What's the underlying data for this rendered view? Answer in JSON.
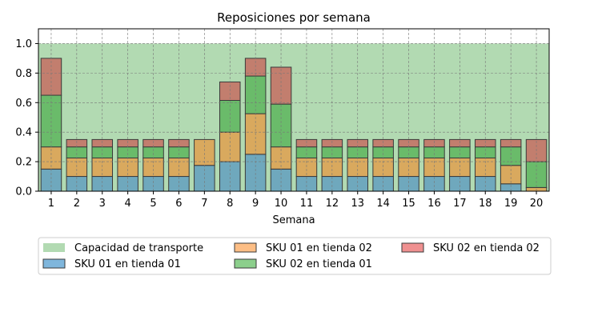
{
  "chart_data": {
    "type": "bar",
    "title": "Reposiciones por semana",
    "xlabel": "Semana",
    "ylabel": "",
    "ylim": [
      0,
      1.1
    ],
    "yticks": [
      "0.0",
      "0.2",
      "0.4",
      "0.6",
      "0.8",
      "1.0"
    ],
    "grid": true,
    "categories": [
      "1",
      "2",
      "3",
      "4",
      "5",
      "6",
      "7",
      "8",
      "9",
      "10",
      "11",
      "12",
      "13",
      "14",
      "15",
      "16",
      "17",
      "18",
      "19",
      "20"
    ],
    "capacity": {
      "name": "Capacidad de transporte",
      "value": 1.0,
      "color": "#b2dab2"
    },
    "series": [
      {
        "name": "SKU 01 en tienda 01",
        "color": "#6fa8bd",
        "legend_color": "#7fb6dc",
        "values": [
          0.15,
          0.1,
          0.1,
          0.1,
          0.1,
          0.1,
          0.175,
          0.2,
          0.25,
          0.15,
          0.1,
          0.1,
          0.1,
          0.1,
          0.1,
          0.1,
          0.1,
          0.1,
          0.05,
          0.0
        ]
      },
      {
        "name": "SKU 01 en tienda 02",
        "color": "#d9a95e",
        "legend_color": "#fdbe85",
        "values": [
          0.15,
          0.125,
          0.125,
          0.125,
          0.125,
          0.125,
          0.175,
          0.2,
          0.275,
          0.15,
          0.125,
          0.125,
          0.125,
          0.125,
          0.125,
          0.125,
          0.125,
          0.125,
          0.125,
          0.025
        ]
      },
      {
        "name": "SKU 02 en tienda 01",
        "color": "#6abb6a",
        "legend_color": "#8ccf8c",
        "values": [
          0.35,
          0.075,
          0.075,
          0.075,
          0.075,
          0.075,
          0.0,
          0.215,
          0.255,
          0.29,
          0.075,
          0.075,
          0.075,
          0.075,
          0.075,
          0.075,
          0.075,
          0.075,
          0.125,
          0.175
        ]
      },
      {
        "name": "SKU 02 en tienda 02",
        "color": "#c27e6e",
        "legend_color": "#ef9090",
        "values": [
          0.25,
          0.05,
          0.05,
          0.05,
          0.05,
          0.05,
          0.0,
          0.125,
          0.12,
          0.25,
          0.05,
          0.05,
          0.05,
          0.05,
          0.05,
          0.05,
          0.05,
          0.05,
          0.05,
          0.15
        ]
      }
    ]
  }
}
